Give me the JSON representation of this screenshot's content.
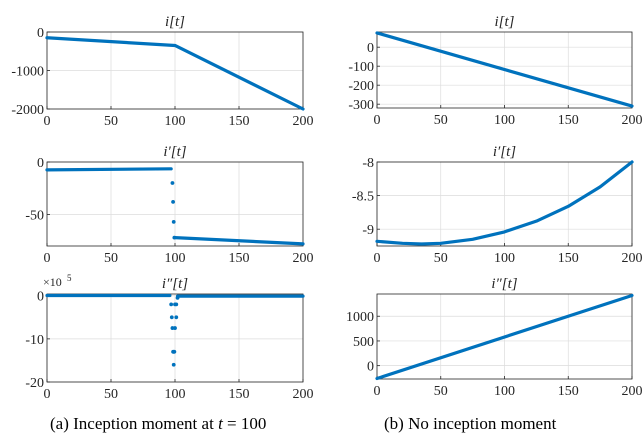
{
  "chart_data": [
    {
      "type": "line",
      "title": "i[t]",
      "xlim": [
        0,
        200
      ],
      "ylim": [
        -2000,
        0
      ],
      "xticks": [
        0,
        50,
        100,
        150,
        200
      ],
      "xtick_labels": [
        "0",
        "50",
        "100",
        "150",
        "200"
      ],
      "yticks": [
        0,
        -1000,
        -2000
      ],
      "ytick_labels": [
        "0",
        "-1000",
        "-2000"
      ],
      "grid": true,
      "color": "#0072BD",
      "series": [
        {
          "x": [
            0,
            100,
            200
          ],
          "y": [
            -150,
            -350,
            -2000
          ]
        }
      ]
    },
    {
      "type": "line",
      "title": "i[t]",
      "xlim": [
        0,
        200
      ],
      "ylim": [
        -320,
        80
      ],
      "xticks": [
        0,
        50,
        100,
        150,
        200
      ],
      "xtick_labels": [
        "0",
        "50",
        "100",
        "150",
        "200"
      ],
      "yticks": [
        0,
        -100,
        -200,
        -300
      ],
      "ytick_labels": [
        "0",
        "-100",
        "-200",
        "-300"
      ],
      "grid": true,
      "color": "#0072BD",
      "series": [
        {
          "x": [
            0,
            200
          ],
          "y": [
            75,
            -310
          ]
        }
      ]
    },
    {
      "type": "line",
      "title": "i′[t]",
      "xlim": [
        0,
        200
      ],
      "ylim": [
        -80,
        0
      ],
      "xticks": [
        0,
        50,
        100,
        150,
        200
      ],
      "xtick_labels": [
        "0",
        "50",
        "100",
        "150",
        "200"
      ],
      "yticks": [
        0,
        -50
      ],
      "ytick_labels": [
        "0",
        "-50"
      ],
      "grid": true,
      "color": "#0072BD",
      "series": [
        {
          "x": [
            0,
            97
          ],
          "y": [
            -7.5,
            -6.5
          ]
        },
        {
          "x": [
            100,
            200
          ],
          "y": [
            -72,
            -78
          ]
        },
        {
          "x": [
            98,
            98.5,
            99,
            99.5
          ],
          "y": [
            -20,
            -38,
            -57,
            -72
          ],
          "style": "points"
        }
      ]
    },
    {
      "type": "line",
      "title": "i′[t]",
      "xlim": [
        0,
        200
      ],
      "ylim": [
        -9.25,
        -8
      ],
      "xticks": [
        0,
        50,
        100,
        150,
        200
      ],
      "xtick_labels": [
        "0",
        "50",
        "100",
        "150",
        "200"
      ],
      "yticks": [
        -8,
        -8.5,
        -9
      ],
      "ytick_labels": [
        "-8",
        "-8.5",
        "-9"
      ],
      "grid": true,
      "color": "#0072BD",
      "series": [
        {
          "x": [
            0,
            20,
            35,
            50,
            75,
            100,
            125,
            150,
            175,
            200
          ],
          "y": [
            -9.18,
            -9.21,
            -9.22,
            -9.21,
            -9.15,
            -9.04,
            -8.88,
            -8.66,
            -8.37,
            -8.0
          ]
        }
      ]
    },
    {
      "type": "line",
      "title": "i″[t]",
      "exponent_label": "×10",
      "exponent_power": "5",
      "xlim": [
        0,
        200
      ],
      "ylim": [
        -20,
        0.4
      ],
      "xticks": [
        0,
        50,
        100,
        150,
        200
      ],
      "xtick_labels": [
        "0",
        "50",
        "100",
        "150",
        "200"
      ],
      "yticks": [
        0,
        -10,
        -20
      ],
      "ytick_labels": [
        "0",
        "-10",
        "-20"
      ],
      "grid": true,
      "color": "#0072BD",
      "series": [
        {
          "x": [
            0,
            96
          ],
          "y": [
            0.05,
            0.05
          ]
        },
        {
          "x": [
            102,
            200
          ],
          "y": [
            -0.1,
            -0.1
          ]
        },
        {
          "x": [
            97,
            97.5,
            98,
            98.5,
            99,
            99,
            99.5,
            100,
            100,
            101,
            101,
            102
          ],
          "y": [
            -2,
            -5,
            -7.5,
            -13,
            -16,
            -13,
            -13,
            -2,
            -7.5,
            -5,
            -2,
            -0.5
          ],
          "style": "points"
        }
      ]
    },
    {
      "type": "line",
      "title": "i″[t]",
      "xlim": [
        0,
        200
      ],
      "ylim": [
        -270,
        1450
      ],
      "xticks": [
        0,
        50,
        100,
        150,
        200
      ],
      "xtick_labels": [
        "0",
        "50",
        "100",
        "150",
        "200"
      ],
      "yticks": [
        1000,
        500,
        0
      ],
      "ytick_labels": [
        "1000",
        "500",
        "0"
      ],
      "grid": true,
      "color": "#0072BD",
      "series": [
        {
          "x": [
            0,
            200
          ],
          "y": [
            -260,
            1420
          ]
        }
      ]
    }
  ],
  "captions": {
    "left_prefix": "(a) Inception moment at ",
    "left_var": "t",
    "left_suffix": " = 100",
    "right": "(b) No inception moment"
  }
}
